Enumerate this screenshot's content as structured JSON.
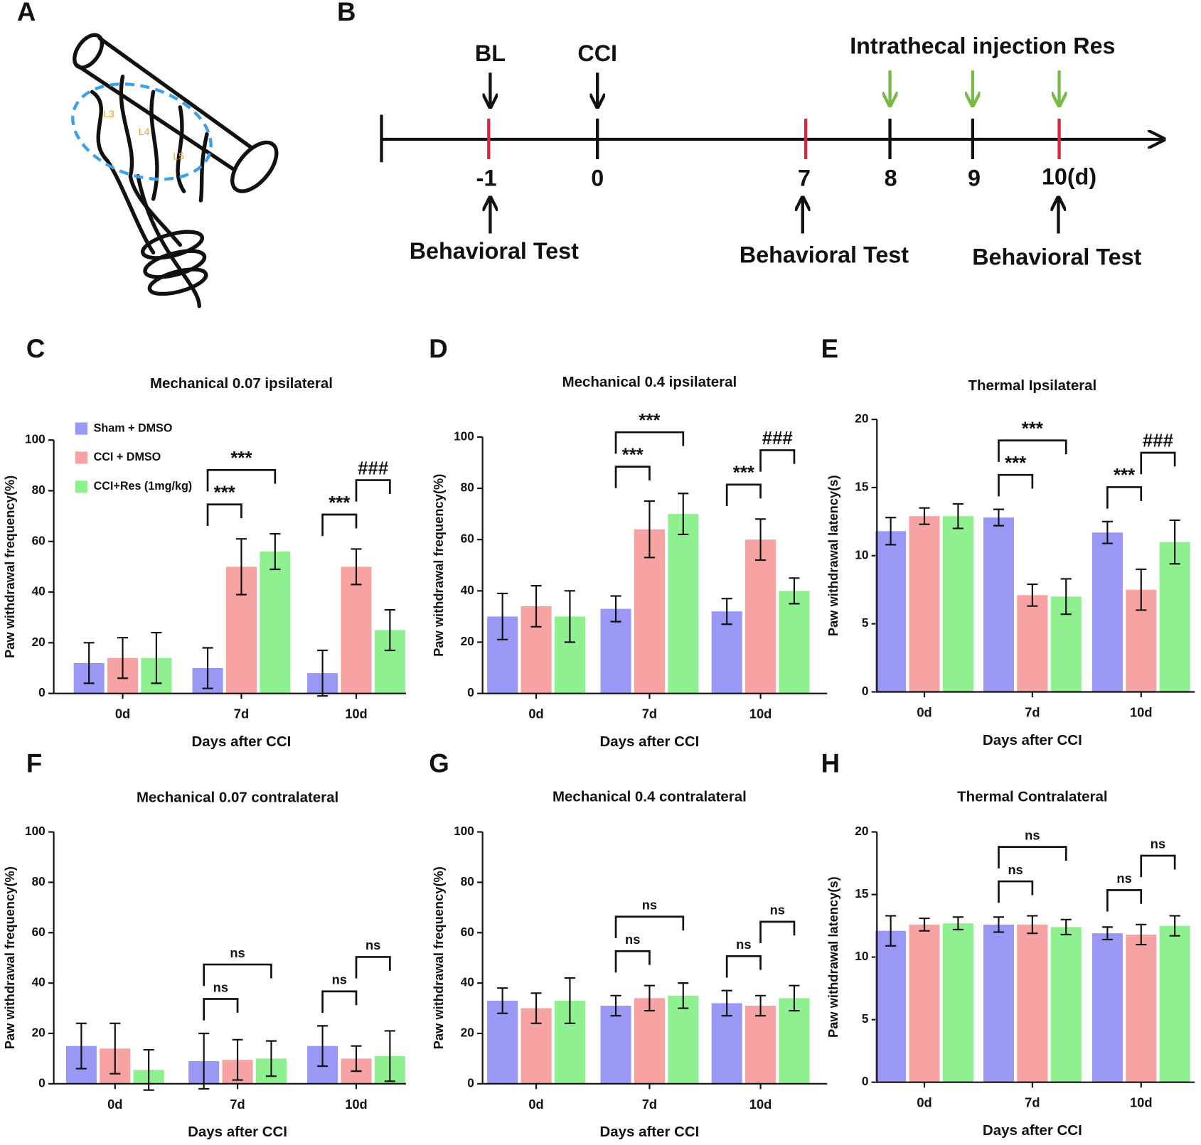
{
  "panel_labels": [
    "A",
    "B",
    "C",
    "D",
    "E",
    "F",
    "G",
    "H"
  ],
  "spinal_labels": [
    "L3",
    "L4",
    "L5"
  ],
  "timeline": {
    "top_labels": [
      "BL",
      "CCI",
      "Intrathecal injection Res"
    ],
    "ticks": [
      "-1",
      "0",
      "7",
      "8",
      "9",
      "10(d)"
    ],
    "bottom_labels": [
      "Behavioral Test",
      "Behavioral Test",
      "Behavioral Test"
    ]
  },
  "chart_data": [
    {
      "type": "bar",
      "title": "Mechanical 0.07 ipsilateral",
      "x_label": "Days after CCI",
      "y_label": "Paw withdrawal frequency(%)",
      "categories": [
        "0d",
        "7d",
        "10d"
      ],
      "ylim": [
        0,
        100
      ],
      "yticks": [
        0,
        20,
        40,
        60,
        80,
        100
      ],
      "legend": "upper left",
      "series": [
        {
          "name": "Sham + DMSO",
          "color": "#9999f5",
          "values": [
            12,
            10,
            8
          ],
          "errors": [
            8,
            8,
            9
          ]
        },
        {
          "name": "CCI + DMSO",
          "color": "#f7a3a3",
          "values": [
            14,
            50,
            50
          ],
          "errors": [
            8,
            11,
            7
          ]
        },
        {
          "name": "CCI+Res (1mg/kg)",
          "color": "#8ff08f",
          "values": [
            14,
            56,
            25
          ],
          "errors": [
            10,
            7,
            8
          ]
        }
      ],
      "annotations": [
        {
          "label": "***",
          "category": 1,
          "from": 0,
          "to": 1
        },
        {
          "label": "***",
          "category": 1,
          "from": 0,
          "to": 2
        },
        {
          "label": "***",
          "category": 2,
          "from": 0,
          "to": 1
        },
        {
          "label": "###",
          "category": 2,
          "from": 1,
          "to": 2
        }
      ]
    },
    {
      "type": "bar",
      "title": "Mechanical 0.4 ipsilateral",
      "x_label": "Days after CCI",
      "y_label": "Paw withdrawal frequency(%)",
      "categories": [
        "0d",
        "7d",
        "10d"
      ],
      "ylim": [
        0,
        100
      ],
      "yticks": [
        0,
        20,
        40,
        60,
        80,
        100
      ],
      "series": [
        {
          "name": "Sham + DMSO",
          "color": "#9999f5",
          "values": [
            30,
            33,
            32
          ],
          "errors": [
            9,
            5,
            5
          ]
        },
        {
          "name": "CCI + DMSO",
          "color": "#f7a3a3",
          "values": [
            34,
            64,
            60
          ],
          "errors": [
            8,
            11,
            8
          ]
        },
        {
          "name": "CCI+Res (1mg/kg)",
          "color": "#8ff08f",
          "values": [
            30,
            70,
            40
          ],
          "errors": [
            10,
            8,
            5
          ]
        }
      ],
      "annotations": [
        {
          "label": "***",
          "category": 1,
          "from": 0,
          "to": 1
        },
        {
          "label": "***",
          "category": 1,
          "from": 0,
          "to": 2
        },
        {
          "label": "***",
          "category": 2,
          "from": 0,
          "to": 1
        },
        {
          "label": "###",
          "category": 2,
          "from": 1,
          "to": 2
        }
      ]
    },
    {
      "type": "bar",
      "title": "Thermal Ipsilateral",
      "x_label": "Days after CCI",
      "y_label": "Paw withdrawal latency(s)",
      "categories": [
        "0d",
        "7d",
        "10d"
      ],
      "ylim": [
        0,
        20
      ],
      "yticks": [
        0,
        5,
        10,
        15,
        20
      ],
      "series": [
        {
          "name": "Sham + DMSO",
          "color": "#9999f5",
          "values": [
            11.8,
            12.8,
            11.7
          ],
          "errors": [
            1,
            0.6,
            0.8
          ]
        },
        {
          "name": "CCI + DMSO",
          "color": "#f7a3a3",
          "values": [
            12.9,
            7.1,
            7.5
          ],
          "errors": [
            0.6,
            0.8,
            1.5
          ]
        },
        {
          "name": "CCI+Res (1mg/kg)",
          "color": "#8ff08f",
          "values": [
            12.9,
            7,
            11
          ],
          "errors": [
            0.9,
            1.3,
            1.6
          ]
        }
      ],
      "annotations": [
        {
          "label": "***",
          "category": 1,
          "from": 0,
          "to": 1
        },
        {
          "label": "***",
          "category": 1,
          "from": 0,
          "to": 2
        },
        {
          "label": "***",
          "category": 2,
          "from": 0,
          "to": 1
        },
        {
          "label": "###",
          "category": 2,
          "from": 1,
          "to": 2
        }
      ]
    },
    {
      "type": "bar",
      "title": "Mechanical 0.07 contralateral",
      "x_label": "Days after CCI",
      "y_label": "Paw withdrawal frequency(%)",
      "categories": [
        "0d",
        "7d",
        "10d"
      ],
      "ylim": [
        0,
        100
      ],
      "yticks": [
        0,
        20,
        40,
        60,
        80,
        100
      ],
      "series": [
        {
          "name": "Sham + DMSO",
          "color": "#9999f5",
          "values": [
            15,
            9,
            15
          ],
          "errors": [
            9,
            11,
            8
          ]
        },
        {
          "name": "CCI + DMSO",
          "color": "#f7a3a3",
          "values": [
            14,
            9.5,
            10
          ],
          "errors": [
            10,
            8,
            5
          ]
        },
        {
          "name": "CCI+Res (1mg/kg)",
          "color": "#8ff08f",
          "values": [
            5.5,
            10,
            11
          ],
          "errors": [
            8,
            7,
            10
          ]
        }
      ],
      "annotations": [
        {
          "label": "ns",
          "category": 1,
          "from": 0,
          "to": 1
        },
        {
          "label": "ns",
          "category": 1,
          "from": 0,
          "to": 2
        },
        {
          "label": "ns",
          "category": 2,
          "from": 0,
          "to": 1
        },
        {
          "label": "ns",
          "category": 2,
          "from": 1,
          "to": 2
        }
      ]
    },
    {
      "type": "bar",
      "title": "Mechanical 0.4 contralateral",
      "x_label": "Days after CCI",
      "y_label": "Paw withdrawal frequency(%)",
      "categories": [
        "0d",
        "7d",
        "10d"
      ],
      "ylim": [
        0,
        100
      ],
      "yticks": [
        0,
        20,
        40,
        60,
        80,
        100
      ],
      "series": [
        {
          "name": "Sham + DMSO",
          "color": "#9999f5",
          "values": [
            33,
            31,
            32
          ],
          "errors": [
            5,
            4,
            5
          ]
        },
        {
          "name": "CCI + DMSO",
          "color": "#f7a3a3",
          "values": [
            30,
            34,
            31
          ],
          "errors": [
            6,
            5,
            4
          ]
        },
        {
          "name": "CCI+Res (1mg/kg)",
          "color": "#8ff08f",
          "values": [
            33,
            35,
            34
          ],
          "errors": [
            9,
            5,
            5
          ]
        }
      ],
      "annotations": [
        {
          "label": "ns",
          "category": 1,
          "from": 0,
          "to": 1
        },
        {
          "label": "ns",
          "category": 1,
          "from": 0,
          "to": 2
        },
        {
          "label": "ns",
          "category": 2,
          "from": 0,
          "to": 1
        },
        {
          "label": "ns",
          "category": 2,
          "from": 1,
          "to": 2
        }
      ]
    },
    {
      "type": "bar",
      "title": "Thermal Contralateral",
      "x_label": "Days after CCI",
      "y_label": "Paw withdrawal latency(s)",
      "categories": [
        "0d",
        "7d",
        "10d"
      ],
      "ylim": [
        0,
        20
      ],
      "yticks": [
        0,
        5,
        10,
        15,
        20
      ],
      "series": [
        {
          "name": "Sham + DMSO",
          "color": "#9999f5",
          "values": [
            12.1,
            12.6,
            11.9
          ],
          "errors": [
            1.2,
            0.6,
            0.5
          ]
        },
        {
          "name": "CCI + DMSO",
          "color": "#f7a3a3",
          "values": [
            12.6,
            12.6,
            11.8
          ],
          "errors": [
            0.5,
            0.7,
            0.8
          ]
        },
        {
          "name": "CCI+Res (1mg/kg)",
          "color": "#8ff08f",
          "values": [
            12.7,
            12.4,
            12.5
          ],
          "errors": [
            0.5,
            0.6,
            0.8
          ]
        }
      ],
      "annotations": [
        {
          "label": "ns",
          "category": 1,
          "from": 0,
          "to": 1
        },
        {
          "label": "ns",
          "category": 1,
          "from": 0,
          "to": 2
        },
        {
          "label": "ns",
          "category": 2,
          "from": 0,
          "to": 1
        },
        {
          "label": "ns",
          "category": 2,
          "from": 1,
          "to": 2
        }
      ]
    }
  ]
}
